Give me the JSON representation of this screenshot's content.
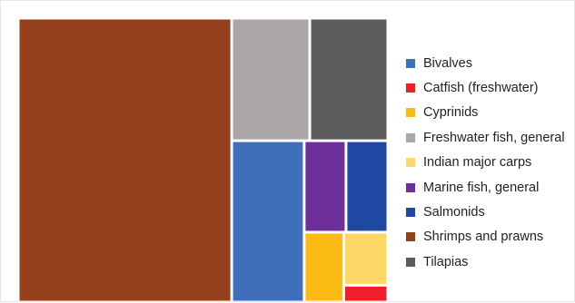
{
  "chart_data": {
    "type": "treemap",
    "title": "",
    "legend_position": "right",
    "series": [
      {
        "name": "Shrimps and prawns",
        "value": 57.0,
        "color": "#963f1d"
      },
      {
        "name": "Freshwater fish, general",
        "value": 9.0,
        "color": "#aaa7a6"
      },
      {
        "name": "Tilapias",
        "value": 9.0,
        "color": "#5c5c5c"
      },
      {
        "name": "Bivalves",
        "value": 11.0,
        "color": "#3f6fbb"
      },
      {
        "name": "Marine fish, general",
        "value": 3.6,
        "color": "#6f2f9b"
      },
      {
        "name": "Salmonids",
        "value": 3.6,
        "color": "#1e48a3"
      },
      {
        "name": "Cyprinids",
        "value": 2.6,
        "color": "#fbba14"
      },
      {
        "name": "Indian major carps",
        "value": 2.2,
        "color": "#fdd867"
      },
      {
        "name": "Catfish (freshwater)",
        "value": 0.7,
        "color": "#ee1e2a"
      }
    ],
    "legend": [
      {
        "name": "Bivalves",
        "color": "#3f6fbb"
      },
      {
        "name": "Catfish (freshwater)",
        "color": "#ee1e2a"
      },
      {
        "name": "Cyprinids",
        "color": "#fbba14"
      },
      {
        "name": "Freshwater fish, general",
        "color": "#aaa7a6"
      },
      {
        "name": "Indian major carps",
        "color": "#fdd867"
      },
      {
        "name": "Marine fish, general",
        "color": "#6f2f9b"
      },
      {
        "name": "Salmonids",
        "color": "#1e48a3"
      },
      {
        "name": "Shrimps and prawns",
        "color": "#963f1d"
      },
      {
        "name": "Tilapias",
        "color": "#5c5c5c"
      }
    ]
  }
}
